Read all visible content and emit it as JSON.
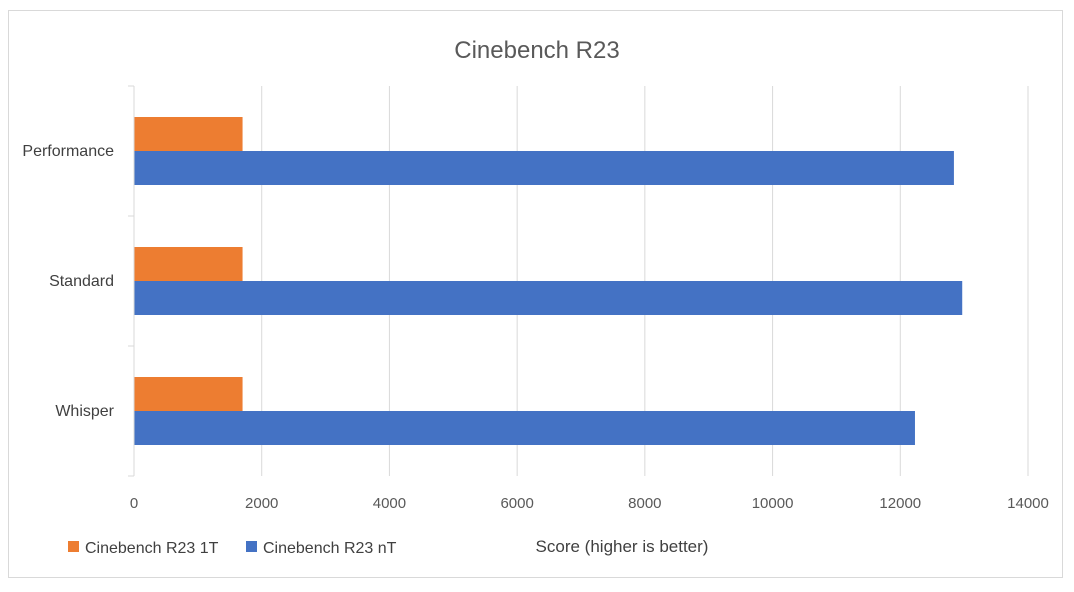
{
  "chart_data": {
    "type": "bar",
    "orientation": "horizontal",
    "title": "Cinebench R23",
    "xlabel": "Score (higher is better)",
    "ylabel": "",
    "categories": [
      "Performance",
      "Standard",
      "Whisper"
    ],
    "series": [
      {
        "name": "Cinebench R23 1T",
        "color": "#ed7d31",
        "values": [
          1700,
          1700,
          1700
        ]
      },
      {
        "name": "Cinebench R23 nT",
        "color": "#4472c4",
        "values": [
          12840,
          12970,
          12230
        ]
      }
    ],
    "xlim": [
      0,
      14000
    ],
    "xticks": [
      0,
      2000,
      4000,
      6000,
      8000,
      10000,
      12000,
      14000
    ],
    "xtick_labels": [
      "0",
      "2000",
      "4000",
      "6000",
      "8000",
      "10000",
      "12000",
      "14000"
    ],
    "grid": "vertical",
    "legend_position": "bottom-left"
  }
}
